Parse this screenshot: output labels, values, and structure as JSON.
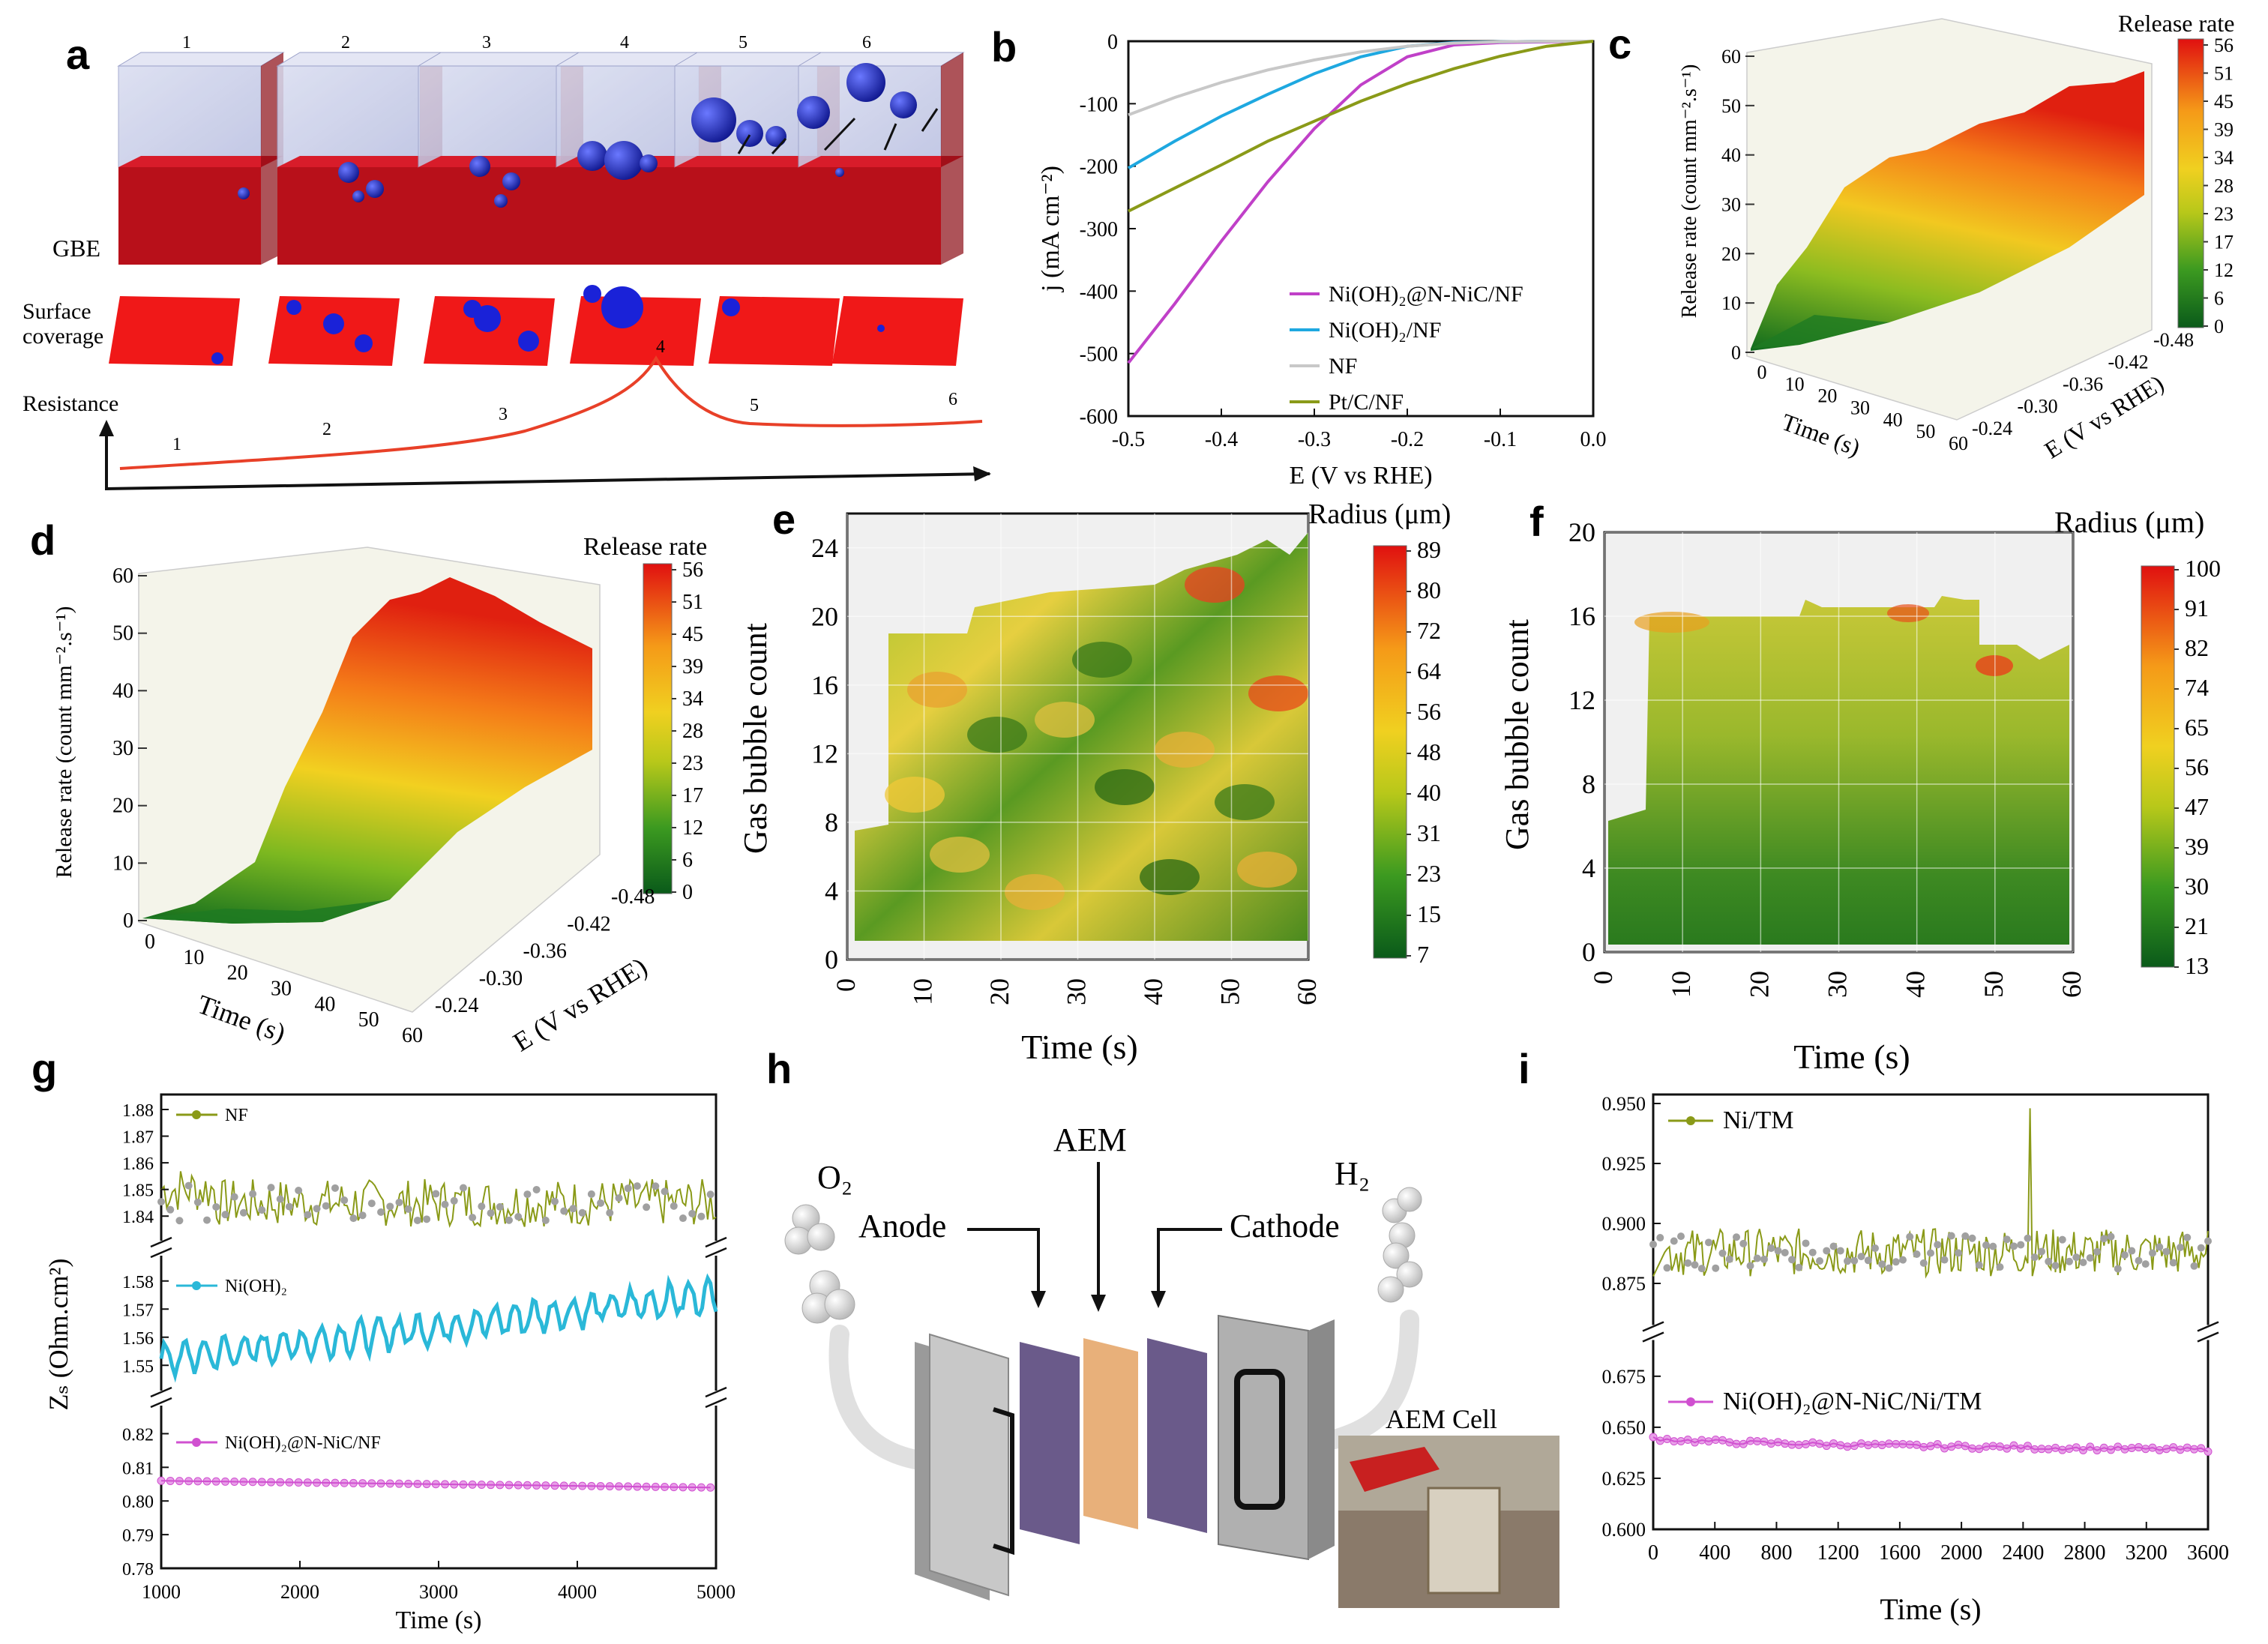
{
  "panels": {
    "a": {
      "letter": "a",
      "cell_numbers": [
        "1",
        "2",
        "3",
        "4",
        "5",
        "6"
      ],
      "gbe_label": "GBE",
      "surface_label_line1": "Surface",
      "surface_label_line2": "coverage",
      "resistance_label": "Resistance",
      "resistance_points": [
        "1",
        "2",
        "3",
        "4",
        "5",
        "6"
      ]
    },
    "b": {
      "letter": "b",
      "xlabel": "E (V vs RHE)",
      "ylabel": "j (mA cm⁻²)",
      "legend": [
        "Ni(OH)₂@N-NiC/NF",
        "Ni(OH)₂/NF",
        "NF",
        "Pt/C/NF"
      ]
    },
    "c": {
      "letter": "c",
      "colorbar_title": "Release rate",
      "zlabel": "Release rate (count mm⁻².s⁻¹)",
      "xlabel": "Time (s)",
      "ylabel": "E (V vs RHE)",
      "colorbar_ticks": [
        "56",
        "51",
        "45",
        "39",
        "34",
        "28",
        "23",
        "17",
        "12",
        "6",
        "0"
      ]
    },
    "d": {
      "letter": "d",
      "colorbar_title": "Release rate",
      "zlabel": "Release rate (count mm⁻².s⁻¹)",
      "xlabel": "Time (s)",
      "ylabel": "E (V vs RHE)",
      "colorbar_ticks": [
        "56",
        "51",
        "45",
        "39",
        "34",
        "28",
        "23",
        "17",
        "12",
        "6",
        "0"
      ]
    },
    "e": {
      "letter": "e",
      "colorbar_title": "Radius (μm)",
      "xlabel": "Time (s)",
      "ylabel": "Gas bubble count",
      "colorbar_ticks": [
        "89",
        "80",
        "72",
        "64",
        "56",
        "48",
        "40",
        "31",
        "23",
        "15",
        "7"
      ]
    },
    "f": {
      "letter": "f",
      "colorbar_title": "Radius (μm)",
      "xlabel": "Time (s)",
      "ylabel": "Gas bubble count",
      "colorbar_ticks": [
        "100",
        "91",
        "82",
        "74",
        "65",
        "56",
        "47",
        "39",
        "30",
        "21",
        "13"
      ]
    },
    "g": {
      "letter": "g",
      "xlabel": "Time (s)",
      "ylabel": "Zₛ (Ohm.cm²)",
      "series_labels": [
        "NF",
        "Ni(OH)₂",
        "Ni(OH)₂@N-NiC/NF"
      ]
    },
    "h": {
      "letter": "h",
      "o2": "O₂",
      "h2": "H₂",
      "anode": "Anode",
      "aem": "AEM",
      "cathode": "Cathode",
      "cell": "AEM Cell"
    },
    "i": {
      "letter": "i",
      "xlabel": "Time (s)",
      "series_labels": [
        "Ni/TM",
        "Ni(OH)₂@N-NiC/Ni/TM"
      ]
    }
  },
  "chart_data": [
    {
      "id": "b",
      "type": "line",
      "xlabel": "E (V vs RHE)",
      "ylabel": "j (mA cm⁻²)",
      "xlim": [
        -0.5,
        0.0
      ],
      "ylim": [
        -600,
        0
      ],
      "xticks": [
        -0.5,
        -0.4,
        -0.3,
        -0.2,
        -0.1,
        0.0
      ],
      "yticks": [
        0,
        -100,
        -200,
        -300,
        -400,
        -500,
        -600
      ],
      "series": [
        {
          "name": "Ni(OH)₂@N-NiC/NF",
          "color": "#c040c8",
          "x": [
            -0.5,
            -0.45,
            -0.4,
            -0.35,
            -0.3,
            -0.25,
            -0.2,
            -0.15,
            -0.1,
            -0.05,
            0.0
          ],
          "y": [
            -515,
            -420,
            -320,
            -225,
            -140,
            -70,
            -25,
            -6,
            -2,
            -1,
            0
          ]
        },
        {
          "name": "Ni(OH)₂/NF",
          "color": "#1ea8e0",
          "x": [
            -0.5,
            -0.45,
            -0.4,
            -0.35,
            -0.3,
            -0.25,
            -0.2,
            -0.15,
            -0.1,
            -0.05,
            0.0
          ],
          "y": [
            -203,
            -160,
            -120,
            -85,
            -52,
            -25,
            -8,
            -2,
            -1,
            0,
            0
          ]
        },
        {
          "name": "NF",
          "color": "#c8c8c8",
          "x": [
            -0.5,
            -0.45,
            -0.4,
            -0.35,
            -0.3,
            -0.25,
            -0.2,
            -0.15,
            -0.1,
            -0.05,
            0.0
          ],
          "y": [
            -118,
            -90,
            -66,
            -46,
            -30,
            -17,
            -8,
            -3,
            -1,
            0,
            0
          ]
        },
        {
          "name": "Pt/C/NF",
          "color": "#8a9a18",
          "x": [
            -0.5,
            -0.45,
            -0.4,
            -0.35,
            -0.3,
            -0.25,
            -0.2,
            -0.15,
            -0.1,
            -0.05,
            0.0
          ],
          "y": [
            -272,
            -235,
            -198,
            -160,
            -128,
            -96,
            -68,
            -44,
            -24,
            -8,
            0
          ]
        }
      ]
    },
    {
      "id": "c",
      "type": "surface",
      "xlabel": "Time (s)",
      "ylabel": "E (V vs RHE)",
      "zlabel": "Release rate (count mm⁻².s⁻¹)",
      "xticks": [
        0,
        10,
        20,
        30,
        40,
        50,
        60
      ],
      "yticks": [
        -0.24,
        -0.3,
        -0.36,
        -0.42,
        -0.48
      ],
      "zticks": [
        0,
        10,
        20,
        30,
        40,
        50,
        60
      ],
      "colorbar": [
        0,
        6,
        12,
        17,
        23,
        28,
        34,
        39,
        45,
        51,
        56
      ]
    },
    {
      "id": "d",
      "type": "surface",
      "xlabel": "Time (s)",
      "ylabel": "E (V vs RHE)",
      "zlabel": "Release rate (count mm⁻².s⁻¹)",
      "xticks": [
        0,
        10,
        20,
        30,
        40,
        50,
        60
      ],
      "yticks": [
        -0.24,
        -0.3,
        -0.36,
        -0.42,
        -0.48
      ],
      "zticks": [
        0,
        10,
        20,
        30,
        40,
        50,
        60
      ],
      "colorbar": [
        0,
        6,
        12,
        17,
        23,
        28,
        34,
        39,
        45,
        51,
        56
      ]
    },
    {
      "id": "e",
      "type": "heatmap",
      "xlabel": "Time (s)",
      "ylabel": "Gas bubble count",
      "xlim": [
        0,
        60
      ],
      "ylim": [
        0,
        26
      ],
      "xticks": [
        0,
        10,
        20,
        30,
        40,
        50,
        60
      ],
      "yticks": [
        0,
        4,
        8,
        12,
        16,
        20,
        24
      ],
      "colorbar": [
        7,
        15,
        23,
        31,
        40,
        48,
        56,
        64,
        72,
        80,
        89
      ]
    },
    {
      "id": "f",
      "type": "heatmap",
      "xlabel": "Time (s)",
      "ylabel": "Gas bubble count",
      "xlim": [
        0,
        60
      ],
      "ylim": [
        0,
        20
      ],
      "xticks": [
        0,
        10,
        20,
        30,
        40,
        50,
        60
      ],
      "yticks": [
        0,
        4,
        8,
        12,
        16,
        20
      ],
      "colorbar": [
        13,
        21,
        30,
        39,
        47,
        56,
        65,
        74,
        82,
        91,
        100
      ]
    },
    {
      "id": "g",
      "type": "line",
      "xlabel": "Time (s)",
      "ylabel": "Zₛ (Ohm.cm²)",
      "xlim": [
        1000,
        5000
      ],
      "xticks": [
        1000,
        2000,
        3000,
        4000,
        5000
      ],
      "broken_axis_segments": [
        {
          "ylim": [
            1.835,
            1.88
          ],
          "yticks": [
            1.84,
            1.85,
            1.86,
            1.87,
            1.88
          ]
        },
        {
          "ylim": [
            1.545,
            1.585
          ],
          "yticks": [
            1.55,
            1.56,
            1.57,
            1.58
          ]
        },
        {
          "ylim": [
            0.78,
            0.825
          ],
          "yticks": [
            0.78,
            0.79,
            0.8,
            0.81,
            0.82
          ]
        }
      ],
      "series": [
        {
          "name": "NF",
          "color": "#8a9a18",
          "level": 1.845
        },
        {
          "name": "Ni(OH)₂",
          "color": "#2ab8d8",
          "start": 1.552,
          "end": 1.575
        },
        {
          "name": "Ni(OH)₂@N-NiC/NF",
          "color": "#d050d0",
          "start": 0.806,
          "end": 0.804
        }
      ]
    },
    {
      "id": "i",
      "type": "line",
      "xlabel": "Time (s)",
      "xlim": [
        0,
        3600
      ],
      "xticks": [
        0,
        400,
        800,
        1200,
        1600,
        2000,
        2400,
        2800,
        3200,
        3600
      ],
      "broken_axis_segments": [
        {
          "ylim": [
            0.86,
            0.95
          ],
          "yticks": [
            0.875,
            0.9,
            0.925,
            0.95
          ]
        },
        {
          "ylim": [
            0.6,
            0.69
          ],
          "yticks": [
            0.6,
            0.625,
            0.65,
            0.675
          ]
        }
      ],
      "series": [
        {
          "name": "Ni/TM",
          "color": "#8a9a18",
          "level": 0.888
        },
        {
          "name": "Ni(OH)₂@N-NiC/Ni/TM",
          "color": "#d050d0",
          "start": 0.645,
          "end": 0.639
        }
      ]
    }
  ]
}
